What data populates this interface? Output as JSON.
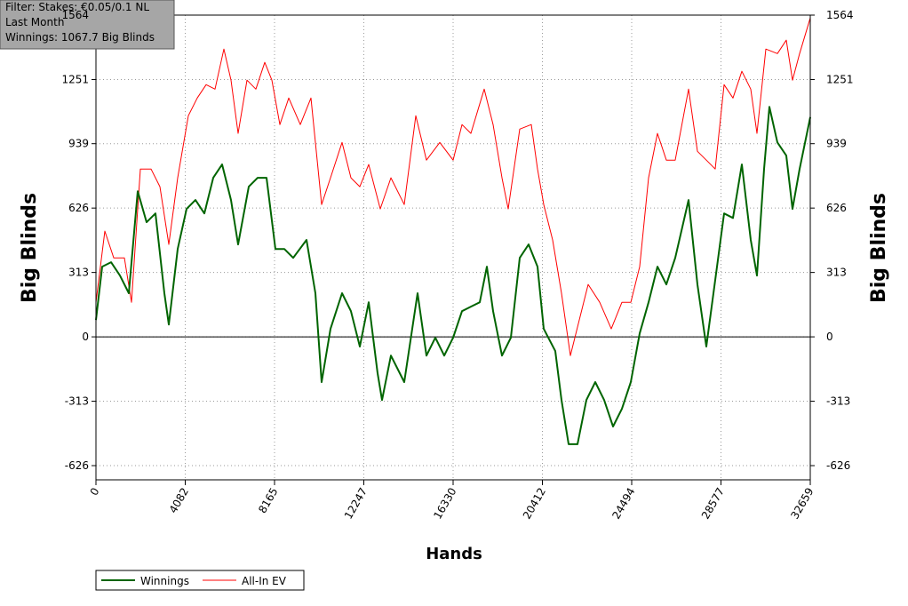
{
  "chart_data": {
    "type": "line",
    "annotations": [
      "Filter: Stakes: €0.05/0.1 NL",
      "Last Month",
      "Winnings: 1067.7 Big Blinds"
    ],
    "x_label": "Hands",
    "y_label": "Big Blinds",
    "y2_label": "Big Blinds",
    "xlim": [
      0,
      32659
    ],
    "xticks": [
      0,
      4082,
      8165,
      12247,
      16330,
      20412,
      24494,
      28577,
      32659
    ],
    "ylim": [
      -695,
      1564
    ],
    "yticks": [
      -626,
      -313,
      0,
      313,
      626,
      939,
      1251,
      1564
    ],
    "grid": true,
    "legend": "bottom-left",
    "series": [
      {
        "name": "Winnings",
        "color": "#006400",
        "x": [
          0,
          284,
          691,
          1097,
          1503,
          1909,
          2315,
          2722,
          3128,
          3331,
          3737,
          4143,
          4549,
          4956,
          5362,
          5768,
          6174,
          6499,
          6987,
          7393,
          7799,
          8205,
          8611,
          9018,
          9627,
          10033,
          10317,
          10724,
          11252,
          11658,
          12064,
          12470,
          12877,
          13080,
          13486,
          14095,
          14705,
          15111,
          15517,
          15923,
          16329,
          16735,
          17142,
          17548,
          17873,
          18157,
          18563,
          18970,
          19376,
          19782,
          20188,
          20472,
          21001,
          21285,
          21610,
          22016,
          22422,
          22828,
          23235,
          23641,
          24047,
          24453,
          24860,
          25266,
          25672,
          26078,
          26484,
          27093,
          27500,
          27906,
          28312,
          28718,
          29124,
          29531,
          29937,
          30221,
          30546,
          30790,
          31155,
          31562,
          31846,
          32171,
          32659
        ],
        "values": [
          82,
          341,
          363,
          298,
          212,
          708,
          557,
          600,
          212,
          60,
          427,
          622,
          665,
          600,
          773,
          838,
          665,
          449,
          730,
          773,
          773,
          427,
          427,
          384,
          471,
          212,
          -220,
          39,
          212,
          125,
          -47,
          168,
          -177,
          -307,
          -91,
          -220,
          212,
          -91,
          -4,
          -91,
          -4,
          125,
          147,
          168,
          341,
          125,
          -91,
          -4,
          384,
          449,
          341,
          39,
          -69,
          -307,
          -522,
          -522,
          -307,
          -220,
          -307,
          -436,
          -350,
          -220,
          17,
          168,
          341,
          255,
          384,
          665,
          255,
          -47,
          276,
          600,
          578,
          838,
          471,
          298,
          816,
          1118,
          945,
          881,
          622,
          816,
          1068
        ]
      },
      {
        "name": "All-In EV",
        "color": "#ff0000",
        "x": [
          0,
          406,
          812,
          1300,
          1625,
          2031,
          2518,
          2925,
          3331,
          3737,
          4224,
          4631,
          5037,
          5443,
          5849,
          6174,
          6499,
          6905,
          7312,
          7718,
          8043,
          8408,
          8815,
          9343,
          9830,
          10317,
          10724,
          11252,
          11658,
          12064,
          12470,
          12998,
          13486,
          14095,
          14623,
          15111,
          15720,
          16329,
          16735,
          17142,
          17751,
          18157,
          18563,
          18848,
          19376,
          19904,
          20188,
          20472,
          20879,
          21285,
          21691,
          22097,
          22503,
          23032,
          23560,
          24047,
          24453,
          24860,
          25266,
          25672,
          26078,
          26484,
          27093,
          27500,
          27906,
          28312,
          28718,
          29124,
          29531,
          29937,
          30221,
          30627,
          31155,
          31562,
          31846,
          32171,
          32659
        ],
        "values": [
          168,
          514,
          384,
          384,
          168,
          816,
          816,
          730,
          449,
          773,
          1075,
          1161,
          1226,
          1204,
          1399,
          1248,
          989,
          1248,
          1204,
          1334,
          1248,
          1032,
          1161,
          1032,
          1161,
          643,
          773,
          945,
          773,
          730,
          838,
          622,
          773,
          643,
          1075,
          859,
          945,
          859,
          1032,
          989,
          1204,
          1032,
          773,
          622,
          1010,
          1032,
          816,
          643,
          471,
          212,
          -91,
          82,
          255,
          168,
          39,
          168,
          168,
          341,
          773,
          989,
          859,
          859,
          1204,
          902,
          859,
          816,
          1226,
          1161,
          1291,
          1204,
          989,
          1399,
          1377,
          1442,
          1248,
          1377,
          1550
        ]
      }
    ]
  }
}
